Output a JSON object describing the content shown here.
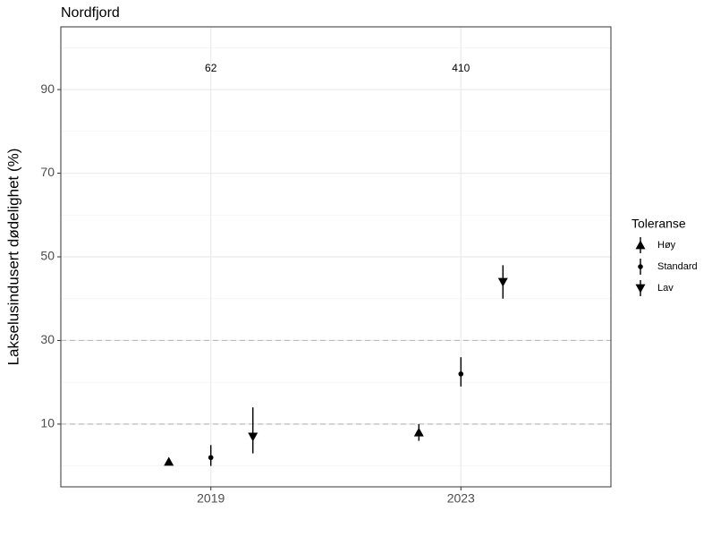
{
  "chart_data": {
    "type": "pointrange",
    "title": "Nordfjord",
    "y_label": "Lakselusindusert dødelighet (%)",
    "categories": [
      "2019",
      "2023"
    ],
    "ylim": [
      -5,
      105
    ],
    "yticks": [
      10,
      30,
      50,
      70,
      90
    ],
    "y_minor_ticks": [
      0,
      20,
      40,
      60,
      80,
      100
    ],
    "grid": true,
    "hlines": [
      10,
      30
    ],
    "legend_title": "Toleranse",
    "legend_position": "right",
    "series": [
      {
        "name": "Høy",
        "color": "#000000",
        "shape": "triangle-up",
        "values": [
          1,
          8
        ],
        "low": [
          0.5,
          6
        ],
        "high": [
          1.5,
          10
        ]
      },
      {
        "name": "Standard",
        "color": "#000000",
        "shape": "circle",
        "values": [
          2,
          22
        ],
        "low": [
          0,
          19
        ],
        "high": [
          5,
          26
        ]
      },
      {
        "name": "Lav",
        "color": "#000000",
        "shape": "triangle-down",
        "values": [
          7,
          44
        ],
        "low": [
          3,
          40
        ],
        "high": [
          14,
          48
        ]
      }
    ],
    "annotations": [
      {
        "text": "62",
        "x": "2019",
        "y": 95
      },
      {
        "text": "410",
        "x": "2023",
        "y": 95
      }
    ]
  }
}
